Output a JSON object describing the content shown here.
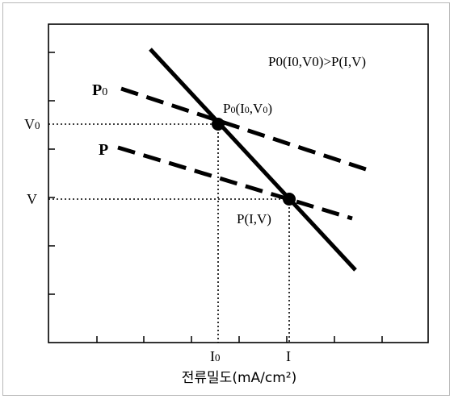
{
  "annotation": "P0(I0,V0)>P(I,V)",
  "lines": {
    "p0_label_main": "P",
    "p0_label_sub": "0",
    "p_label": "P"
  },
  "points": {
    "operating_point_0": {
      "text": "P",
      "sub1": "0",
      "mid": "(I",
      "sub2": "0",
      "mid2": ",V",
      "sub3": "0",
      "end": ")"
    },
    "operating_point": "P(I,V)"
  },
  "y_axis": {
    "v0_main": "V",
    "v0_sub": "0",
    "v": "V"
  },
  "x_axis": {
    "i0_main": "I",
    "i0_sub": "0",
    "i": "I",
    "label": "전류밀도(mA/cm²)"
  },
  "colors": {
    "ink": "#000000",
    "frame": "#b8b8b8"
  }
}
